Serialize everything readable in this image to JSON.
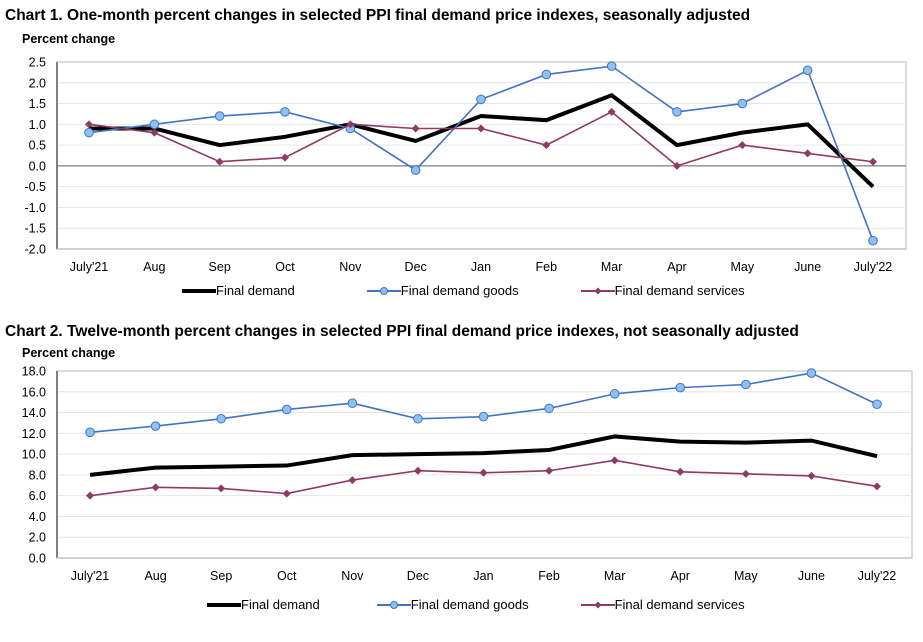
{
  "chart_data": [
    {
      "type": "line",
      "title": "Chart 1. One-month percent changes in selected PPI final demand price indexes, seasonally adjusted",
      "ylabel": "Percent change",
      "xlabel": "",
      "categories": [
        "July'21",
        "Aug",
        "Sep",
        "Oct",
        "Nov",
        "Dec",
        "Jan",
        "Feb",
        "Mar",
        "Apr",
        "May",
        "June",
        "July'22"
      ],
      "ylim": [
        -2.0,
        2.5
      ],
      "yticks": [
        "2.5",
        "2.0",
        "1.5",
        "1.0",
        "0.5",
        "0.0",
        "-0.5",
        "-1.0",
        "-1.5",
        "-2.0"
      ],
      "ytick_values": [
        2.5,
        2.0,
        1.5,
        1.0,
        0.5,
        0.0,
        -0.5,
        -1.0,
        -1.5,
        -2.0
      ],
      "grid": true,
      "legend_position": "bottom",
      "series": [
        {
          "name": "Final demand",
          "color": "#000000",
          "marker": "none",
          "values": [
            0.9,
            0.9,
            0.5,
            0.7,
            1.0,
            0.6,
            1.2,
            1.1,
            1.7,
            0.5,
            0.8,
            1.0,
            -0.5
          ]
        },
        {
          "name": "Final demand goods",
          "color": "#4472C4",
          "marker": "circle",
          "marker_fill": "#8EC0F0",
          "values": [
            0.8,
            1.0,
            1.2,
            1.3,
            0.9,
            -0.1,
            1.6,
            2.2,
            2.4,
            1.3,
            1.5,
            2.3,
            -1.8
          ]
        },
        {
          "name": "Final demand services",
          "color": "#8E3A63",
          "marker": "diamond",
          "marker_fill": "#8E3A63",
          "values": [
            1.0,
            0.8,
            0.1,
            0.2,
            1.0,
            0.9,
            0.9,
            0.5,
            1.3,
            0.0,
            0.5,
            0.3,
            0.1
          ]
        }
      ]
    },
    {
      "type": "line",
      "title": "Chart 2. Twelve-month percent changes in selected PPI final demand price indexes, not seasonally adjusted",
      "ylabel": "Percent change",
      "xlabel": "",
      "categories": [
        "July'21",
        "Aug",
        "Sep",
        "Oct",
        "Nov",
        "Dec",
        "Jan",
        "Feb",
        "Mar",
        "Apr",
        "May",
        "June",
        "July'22"
      ],
      "ylim": [
        0.0,
        18.0
      ],
      "yticks": [
        "18.0",
        "16.0",
        "14.0",
        "12.0",
        "10.0",
        "8.0",
        "6.0",
        "4.0",
        "2.0",
        "0.0"
      ],
      "ytick_values": [
        18,
        16,
        14,
        12,
        10,
        8,
        6,
        4,
        2,
        0
      ],
      "grid": true,
      "legend_position": "bottom",
      "series": [
        {
          "name": "Final demand",
          "color": "#000000",
          "marker": "none",
          "values": [
            8.0,
            8.7,
            8.8,
            8.9,
            9.9,
            10.0,
            10.1,
            10.4,
            11.7,
            11.2,
            11.1,
            11.3,
            9.8
          ]
        },
        {
          "name": "Final demand goods",
          "color": "#4472C4",
          "marker": "circle",
          "marker_fill": "#8EC0F0",
          "values": [
            12.1,
            12.7,
            13.4,
            14.3,
            14.9,
            13.4,
            13.6,
            14.4,
            15.8,
            16.4,
            16.7,
            17.8,
            14.8
          ]
        },
        {
          "name": "Final demand services",
          "color": "#8E3A63",
          "marker": "diamond",
          "marker_fill": "#8E3A63",
          "values": [
            6.0,
            6.8,
            6.7,
            6.2,
            7.5,
            8.4,
            8.2,
            8.4,
            9.4,
            8.3,
            8.1,
            7.9,
            6.9
          ]
        }
      ]
    }
  ]
}
